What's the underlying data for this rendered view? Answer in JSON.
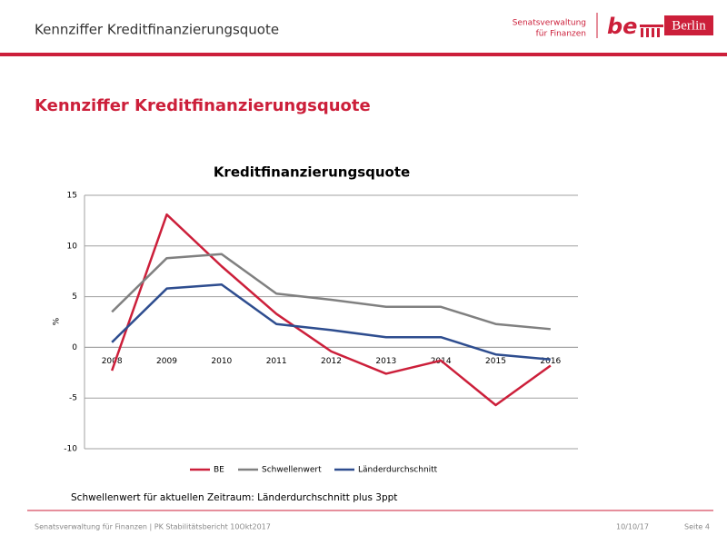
{
  "header": {
    "title": "Kennziffer  Kreditfinanzierungsquote"
  },
  "logo": {
    "org_line1": "Senatsverwaltung",
    "org_line2": "für Finanzen",
    "be": "be",
    "city": "Berlin"
  },
  "slide_title": "Kennziffer Kreditfinanzierungsquote",
  "chart_data": {
    "type": "line",
    "title": "Kreditfinanzierungsquote",
    "ylabel": "%",
    "categories": [
      "2008",
      "2009",
      "2010",
      "2011",
      "2012",
      "2013",
      "2014",
      "2015",
      "2016"
    ],
    "series": [
      {
        "name": "BE",
        "color": "#cc1f3a",
        "values": [
          -2.3,
          13.1,
          8.0,
          3.3,
          -0.4,
          -2.6,
          -1.3,
          -5.7,
          -1.8
        ]
      },
      {
        "name": "Schwellenwert",
        "color": "#808080",
        "values": [
          3.5,
          8.8,
          9.2,
          5.3,
          4.7,
          4.0,
          4.0,
          2.3,
          1.8
        ]
      },
      {
        "name": "Länderdurchschnitt",
        "color": "#2e4d8f",
        "values": [
          0.5,
          5.8,
          6.2,
          2.3,
          1.7,
          1.0,
          1.0,
          -0.7,
          -1.2
        ]
      }
    ],
    "ylim": [
      -10,
      15
    ],
    "yticks": [
      -10,
      -5,
      0,
      5,
      10,
      15
    ],
    "grid": true,
    "legend": "bottom"
  },
  "note": "Schwellenwert für aktuellen Zeitraum: Länderdurchschnitt plus 3ppt",
  "footer": {
    "left": "Senatsverwaltung für Finanzen | PK Stabilitätsbericht 10Okt2017",
    "date": "10/10/17",
    "page": "Seite 4"
  }
}
